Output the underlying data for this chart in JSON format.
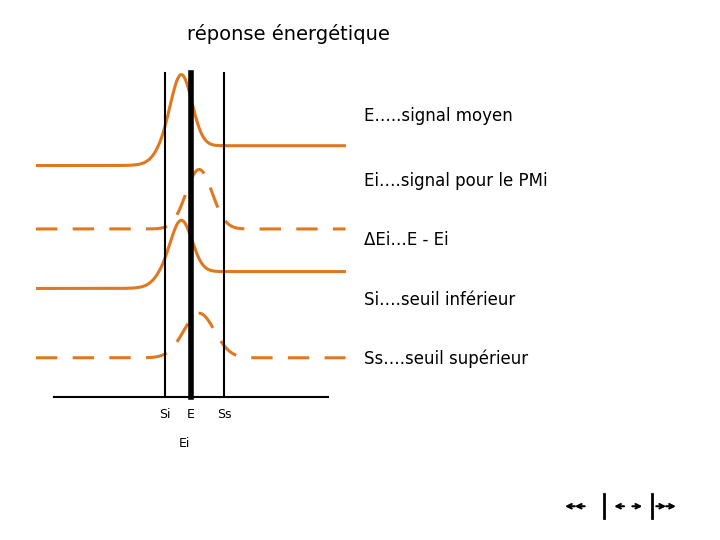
{
  "title": "réponse énergétique",
  "background_color": "#ffffff",
  "signal_color": "#e07820",
  "text_color": "#000000",
  "nav_color": "#20c090",
  "legend_entries": [
    "E…..signal moyen",
    "Ei….signal pour le PMi",
    "ΔEi…E - Ei",
    "Si….seuil inférieur",
    "Ss….seuil supérieur"
  ],
  "title_fontsize": 14,
  "label_fontsize": 12
}
